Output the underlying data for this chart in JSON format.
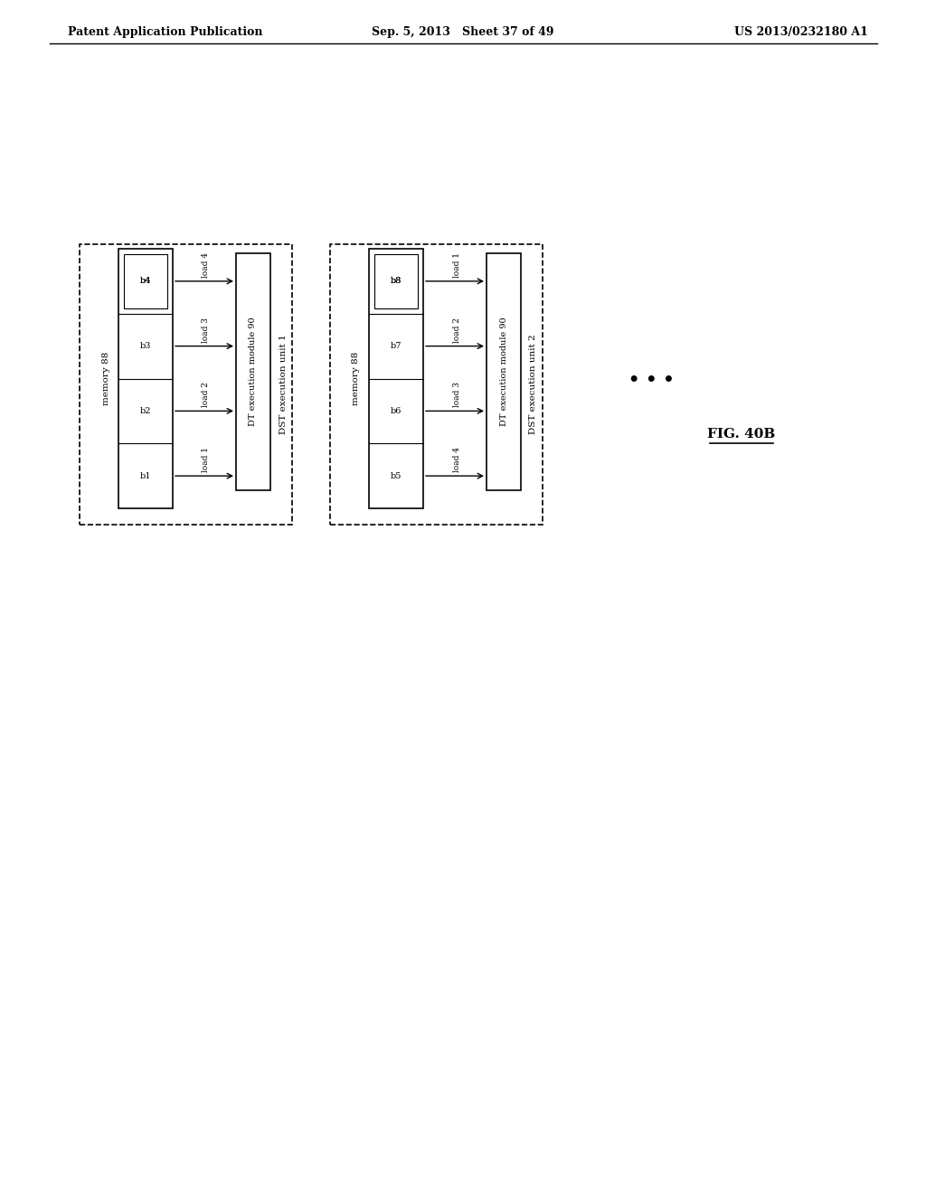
{
  "title_left": "Patent Application Publication",
  "title_center": "Sep. 5, 2013   Sheet 37 of 49",
  "title_right": "US 2013/0232180 A1",
  "fig_label": "FIG. 40B",
  "unit1": {
    "label": "DST execution unit 1",
    "memory_label": "memory 88",
    "module_label": "DT execution module 90",
    "blocks": [
      "b1",
      "b2",
      "b3",
      "b4"
    ],
    "loads": [
      "load 1",
      "load 2",
      "load 3",
      "load 4"
    ]
  },
  "unit2": {
    "label": "DST execution unit 2",
    "memory_label": "memory 88",
    "module_label": "DT execution module 90",
    "blocks": [
      "b5",
      "b6",
      "b7",
      "b8"
    ],
    "loads": [
      "load 4",
      "load 3",
      "load 2",
      "load 1"
    ]
  },
  "ellipsis": "•••",
  "bg_color": "#ffffff",
  "box_color": "#000000",
  "text_color": "#000000"
}
